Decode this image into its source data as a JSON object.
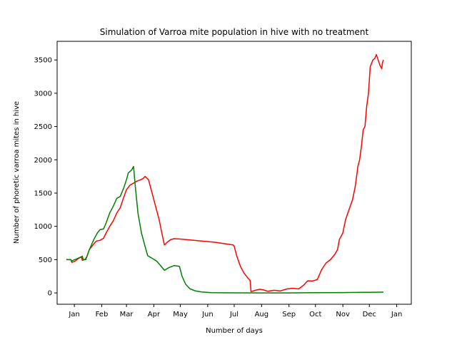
{
  "chart_data": {
    "type": "line",
    "title": "Simulation of Varroa mite population in hive with no treatment",
    "xlabel": "Number of days",
    "ylabel": "Number of phoretic varroa mites in hive",
    "x_ticks": [
      "Jan",
      "Feb",
      "Mar",
      "Apr",
      "May",
      "Jun",
      "Jul",
      "Aug",
      "Sep",
      "Oct",
      "Nov",
      "Dec",
      "Jan"
    ],
    "xlim": [
      "Dec",
      "Jan"
    ],
    "ylim": [
      -170,
      3780
    ],
    "y_ticks": [
      0,
      500,
      1000,
      1500,
      2000,
      2500,
      3000,
      3500
    ],
    "grid": false,
    "legend": "none",
    "series": [
      {
        "color": "#ff0000",
        "points": [
          [
            "Dec 23",
            500
          ],
          [
            "Dec 28",
            500
          ],
          [
            "Dec 29",
            460
          ],
          [
            "Jan 1",
            470
          ],
          [
            "Jan 6",
            520
          ],
          [
            "Jan 9",
            540
          ],
          [
            "Jan 10",
            490
          ],
          [
            "Jan 13",
            500
          ],
          [
            "Jan 15",
            540
          ],
          [
            "Jan 18",
            650
          ],
          [
            "Jan 22",
            720
          ],
          [
            "Jan 26",
            780
          ],
          [
            "Jan 30",
            790
          ],
          [
            "Feb 3",
            820
          ],
          [
            "Feb 6",
            900
          ],
          [
            "Feb 10",
            1000
          ],
          [
            "Feb 14",
            1080
          ],
          [
            "Feb 18",
            1200
          ],
          [
            "Feb 22",
            1280
          ],
          [
            "Feb 25",
            1400
          ],
          [
            "Mar 1",
            1550
          ],
          [
            "Mar 5",
            1620
          ],
          [
            "Mar 9",
            1650
          ],
          [
            "Mar 13",
            1680
          ],
          [
            "Mar 17",
            1700
          ],
          [
            "Mar 20",
            1720
          ],
          [
            "Mar 22",
            1750
          ],
          [
            "Mar 26",
            1700
          ],
          [
            "Mar 30",
            1500
          ],
          [
            "Apr 3",
            1300
          ],
          [
            "Apr 7",
            1100
          ],
          [
            "Apr 10",
            900
          ],
          [
            "Apr 13",
            720
          ],
          [
            "Apr 16",
            760
          ],
          [
            "Apr 20",
            800
          ],
          [
            "Apr 24",
            815
          ],
          [
            "May 1",
            810
          ],
          [
            "Jun 10",
            760
          ],
          [
            "Jun 30",
            720
          ],
          [
            "Jul 1",
            700
          ],
          [
            "Jul 4",
            550
          ],
          [
            "Jul 8",
            400
          ],
          [
            "Jul 12",
            300
          ],
          [
            "Jul 16",
            230
          ],
          [
            "Jul 19",
            190
          ],
          [
            "Jul 20",
            20
          ],
          [
            "Jul 25",
            40
          ],
          [
            "Jul 30",
            55
          ],
          [
            "Aug 3",
            45
          ],
          [
            "Aug 8",
            25
          ],
          [
            "Aug 15",
            40
          ],
          [
            "Aug 22",
            30
          ],
          [
            "Aug 30",
            60
          ],
          [
            "Sep 5",
            70
          ],
          [
            "Sep 12",
            60
          ],
          [
            "Sep 18",
            120
          ],
          [
            "Sep 22",
            180
          ],
          [
            "Sep 28",
            180
          ],
          [
            "Oct 3",
            200
          ],
          [
            "Oct 8",
            350
          ],
          [
            "Oct 13",
            450
          ],
          [
            "Oct 18",
            500
          ],
          [
            "Oct 23",
            580
          ],
          [
            "Oct 26",
            650
          ],
          [
            "Oct 28",
            800
          ],
          [
            "Nov 1",
            900
          ],
          [
            "Nov 4",
            1100
          ],
          [
            "Nov 8",
            1250
          ],
          [
            "Nov 12",
            1400
          ],
          [
            "Nov 15",
            1600
          ],
          [
            "Nov 18",
            1900
          ],
          [
            "Nov 20",
            2000
          ],
          [
            "Nov 22",
            2200
          ],
          [
            "Nov 24",
            2450
          ],
          [
            "Nov 26",
            2500
          ],
          [
            "Nov 28",
            2800
          ],
          [
            "Nov 30",
            3000
          ],
          [
            "Dec 2",
            3400
          ],
          [
            "Dec 5",
            3500
          ],
          [
            "Dec 7",
            3520
          ],
          [
            "Dec 9",
            3580
          ],
          [
            "Dec 11",
            3500
          ],
          [
            "Dec 13",
            3420
          ],
          [
            "Dec 15",
            3370
          ],
          [
            "Dec 16",
            3470
          ],
          [
            "Dec 17",
            3500
          ]
        ]
      },
      {
        "color": "#008000",
        "points": [
          [
            "Dec 23",
            500
          ],
          [
            "Dec 28",
            500
          ],
          [
            "Dec 29",
            480
          ],
          [
            "Jan 5",
            520
          ],
          [
            "Jan 10",
            550
          ],
          [
            "Jan 11",
            500
          ],
          [
            "Jan 14",
            500
          ],
          [
            "Jan 18",
            650
          ],
          [
            "Jan 23",
            800
          ],
          [
            "Jan 27",
            900
          ],
          [
            "Jan 30",
            950
          ],
          [
            "Feb 3",
            960
          ],
          [
            "Feb 6",
            1050
          ],
          [
            "Feb 10",
            1200
          ],
          [
            "Feb 14",
            1300
          ],
          [
            "Feb 18",
            1420
          ],
          [
            "Feb 22",
            1450
          ],
          [
            "Feb 26",
            1580
          ],
          [
            "Mar 1",
            1700
          ],
          [
            "Mar 3",
            1800
          ],
          [
            "Mar 7",
            1850
          ],
          [
            "Mar 9",
            1900
          ],
          [
            "Mar 11",
            1600
          ],
          [
            "Mar 14",
            1200
          ],
          [
            "Mar 18",
            900
          ],
          [
            "Mar 22",
            700
          ],
          [
            "Mar 25",
            560
          ],
          [
            "Mar 30",
            520
          ],
          [
            "Apr 4",
            480
          ],
          [
            "Apr 8",
            420
          ],
          [
            "Apr 13",
            340
          ],
          [
            "Apr 18",
            380
          ],
          [
            "Apr 24",
            410
          ],
          [
            "Apr 30",
            400
          ],
          [
            "May 3",
            250
          ],
          [
            "May 7",
            130
          ],
          [
            "May 12",
            60
          ],
          [
            "May 18",
            30
          ],
          [
            "May 25",
            15
          ],
          [
            "Jun 5",
            5
          ],
          [
            "Jul 1",
            1
          ],
          [
            "Aug 1",
            0
          ],
          [
            "Sep 1",
            0
          ],
          [
            "Oct 1",
            3
          ],
          [
            "Nov 1",
            6
          ],
          [
            "Dec 1",
            10
          ],
          [
            "Dec 17",
            12
          ]
        ]
      }
    ]
  }
}
